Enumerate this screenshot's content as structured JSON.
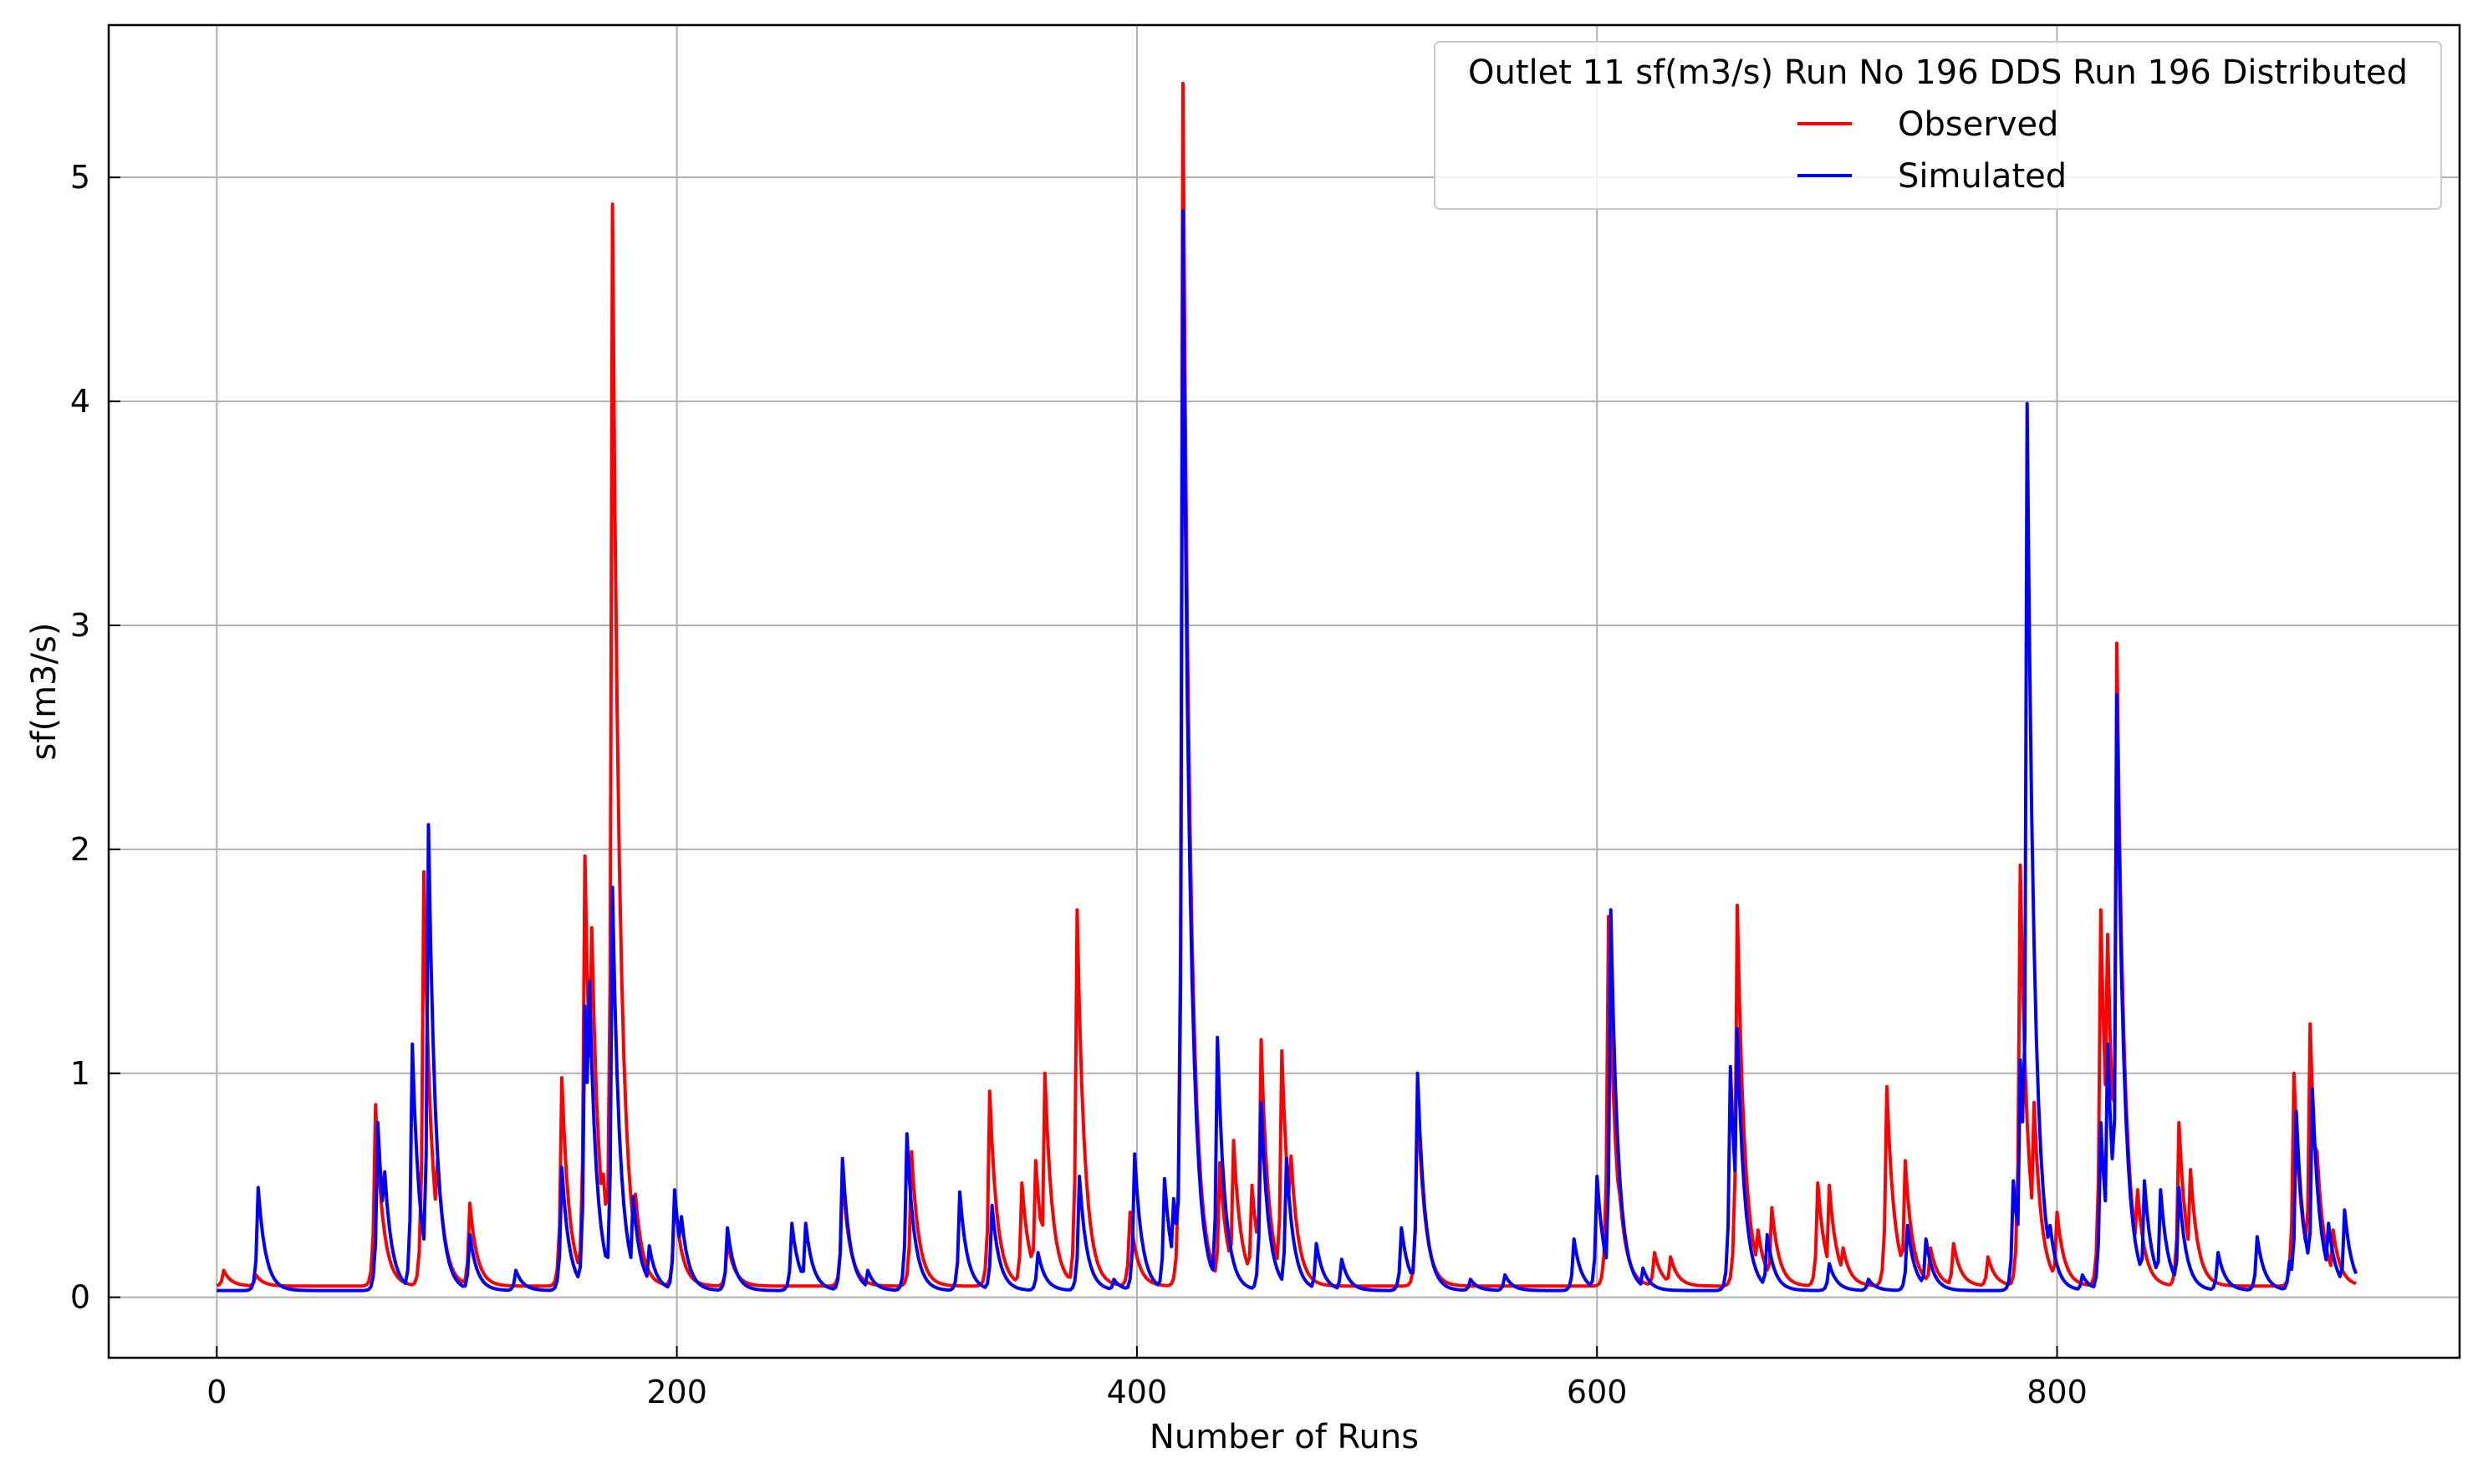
{
  "chart_data": {
    "type": "line",
    "legend_title": "Outlet 11 sf(m3/s) Run No 196 DDS Run 196 Distributed",
    "legend_position": "top-right",
    "xlabel": "Number of Runs",
    "ylabel": "sf(m3/s)",
    "xlim": [
      -47,
      975
    ],
    "ylim": [
      -0.27,
      5.68
    ],
    "xticks": [
      0,
      200,
      400,
      600,
      800
    ],
    "yticks": [
      0,
      1,
      2,
      3,
      4,
      5
    ],
    "grid": true,
    "colors": {
      "Observed": "#ff0000",
      "Simulated": "#0000ff"
    },
    "baseline": {
      "Observed": 0.05,
      "Simulated": 0.03
    },
    "series": [
      {
        "name": "Observed",
        "color": "#ff0000",
        "peaks": [
          [
            3,
            0.12
          ],
          [
            17,
            0.1
          ],
          [
            69,
            0.86
          ],
          [
            70,
            0.5
          ],
          [
            90,
            1.9
          ],
          [
            96,
            0.62
          ],
          [
            110,
            0.42
          ],
          [
            150,
            0.98
          ],
          [
            160,
            1.97
          ],
          [
            163,
            1.65
          ],
          [
            168,
            0.55
          ],
          [
            172,
            4.88
          ],
          [
            182,
            0.46
          ],
          [
            199,
            0.45
          ],
          [
            222,
            0.25
          ],
          [
            272,
            0.55
          ],
          [
            302,
            0.65
          ],
          [
            336,
            0.92
          ],
          [
            350,
            0.51
          ],
          [
            356,
            0.61
          ],
          [
            360,
            1.0
          ],
          [
            374,
            1.73
          ],
          [
            397,
            0.38
          ],
          [
            420,
            5.42
          ],
          [
            425,
            0.5
          ],
          [
            436,
            0.6
          ],
          [
            442,
            0.7
          ],
          [
            450,
            0.5
          ],
          [
            454,
            1.15
          ],
          [
            463,
            1.1
          ],
          [
            467,
            0.63
          ],
          [
            522,
            0.9
          ],
          [
            605,
            1.7
          ],
          [
            610,
            0.45
          ],
          [
            625,
            0.2
          ],
          [
            632,
            0.18
          ],
          [
            661,
            1.75
          ],
          [
            670,
            0.3
          ],
          [
            676,
            0.4
          ],
          [
            696,
            0.51
          ],
          [
            701,
            0.5
          ],
          [
            707,
            0.22
          ],
          [
            726,
            0.94
          ],
          [
            734,
            0.61
          ],
          [
            745,
            0.22
          ],
          [
            755,
            0.24
          ],
          [
            770,
            0.18
          ],
          [
            784,
            1.93
          ],
          [
            790,
            0.87
          ],
          [
            800,
            0.38
          ],
          [
            819,
            1.73
          ],
          [
            822,
            1.62
          ],
          [
            826,
            2.92
          ],
          [
            835,
            0.48
          ],
          [
            853,
            0.78
          ],
          [
            858,
            0.57
          ],
          [
            903,
            1.0
          ],
          [
            910,
            1.22
          ],
          [
            913,
            0.65
          ],
          [
            920,
            0.3
          ]
        ]
      },
      {
        "name": "Simulated",
        "color": "#0000ff",
        "peaks": [
          [
            18,
            0.49
          ],
          [
            70,
            0.78
          ],
          [
            73,
            0.56
          ],
          [
            85,
            1.13
          ],
          [
            92,
            2.11
          ],
          [
            98,
            0.35
          ],
          [
            110,
            0.28
          ],
          [
            130,
            0.12
          ],
          [
            150,
            0.58
          ],
          [
            160,
            1.3
          ],
          [
            162,
            1.41
          ],
          [
            172,
            1.83
          ],
          [
            181,
            0.45
          ],
          [
            188,
            0.23
          ],
          [
            199,
            0.48
          ],
          [
            202,
            0.36
          ],
          [
            222,
            0.31
          ],
          [
            250,
            0.33
          ],
          [
            256,
            0.33
          ],
          [
            272,
            0.62
          ],
          [
            283,
            0.12
          ],
          [
            300,
            0.73
          ],
          [
            323,
            0.47
          ],
          [
            337,
            0.41
          ],
          [
            357,
            0.2
          ],
          [
            375,
            0.54
          ],
          [
            390,
            0.08
          ],
          [
            399,
            0.64
          ],
          [
            412,
            0.53
          ],
          [
            416,
            0.44
          ],
          [
            420,
            4.85
          ],
          [
            435,
            1.16
          ],
          [
            454,
            0.87
          ],
          [
            465,
            0.62
          ],
          [
            478,
            0.24
          ],
          [
            489,
            0.17
          ],
          [
            515,
            0.31
          ],
          [
            522,
            1.0
          ],
          [
            545,
            0.08
          ],
          [
            560,
            0.1
          ],
          [
            590,
            0.26
          ],
          [
            600,
            0.54
          ],
          [
            606,
            1.73
          ],
          [
            620,
            0.13
          ],
          [
            658,
            1.03
          ],
          [
            661,
            1.2
          ],
          [
            674,
            0.28
          ],
          [
            701,
            0.15
          ],
          [
            718,
            0.08
          ],
          [
            735,
            0.32
          ],
          [
            743,
            0.26
          ],
          [
            781,
            0.52
          ],
          [
            784,
            1.06
          ],
          [
            787,
            3.99
          ],
          [
            797,
            0.32
          ],
          [
            811,
            0.1
          ],
          [
            819,
            0.78
          ],
          [
            822,
            1.13
          ],
          [
            826,
            2.69
          ],
          [
            838,
            0.52
          ],
          [
            845,
            0.48
          ],
          [
            853,
            0.49
          ],
          [
            870,
            0.2
          ],
          [
            887,
            0.27
          ],
          [
            901,
            0.16
          ],
          [
            904,
            0.83
          ],
          [
            911,
            0.93
          ],
          [
            918,
            0.33
          ],
          [
            925,
            0.39
          ]
        ]
      }
    ]
  }
}
